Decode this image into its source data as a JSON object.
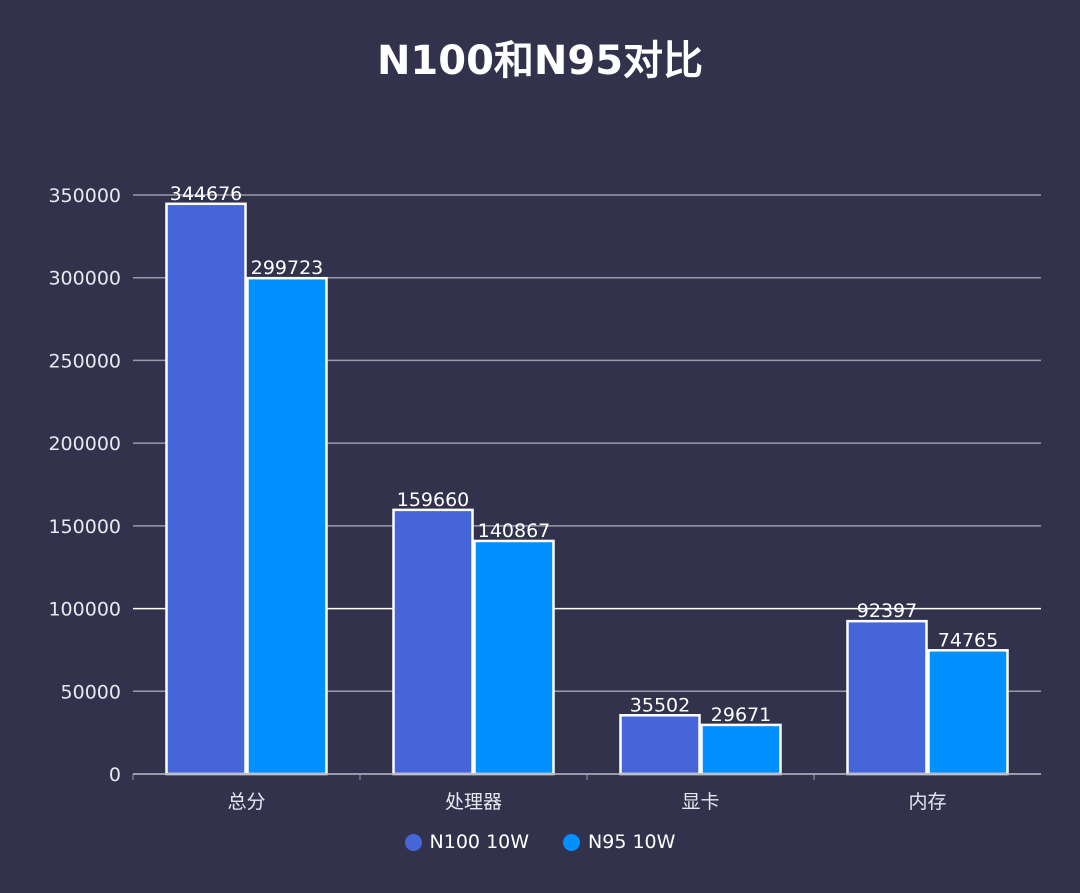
{
  "chart_data": {
    "type": "bar",
    "title": "N100和N95对比",
    "categories": [
      "总分",
      "处理器",
      "显卡",
      "内存"
    ],
    "series": [
      {
        "name": "N100 10W",
        "color": "#4665d8",
        "values": [
          344676,
          159660,
          35502,
          92397
        ]
      },
      {
        "name": "N95 10W",
        "color": "#0090ff",
        "values": [
          299723,
          140867,
          29671,
          74765
        ]
      }
    ],
    "ylim": [
      0,
      350000
    ],
    "yticks": [
      0,
      50000,
      100000,
      150000,
      200000,
      250000,
      300000,
      350000
    ],
    "grid": true,
    "legend": "bottom",
    "background": "#32324c"
  }
}
